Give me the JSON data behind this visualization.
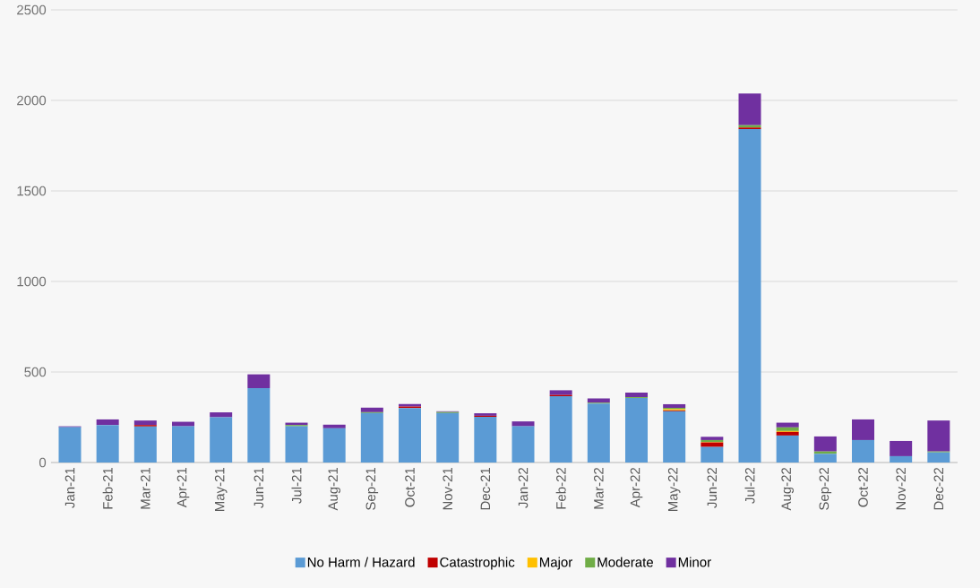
{
  "chart_data": {
    "type": "bar",
    "stacked": true,
    "grid": "y",
    "legend": "bottom",
    "categories": [
      "Jan-21",
      "Feb-21",
      "Mar-21",
      "Apr-21",
      "May-21",
      "Jun-21",
      "Jul-21",
      "Aug-21",
      "Sep-21",
      "Oct-21",
      "Nov-21",
      "Dec-21",
      "Jan-22",
      "Feb-22",
      "Mar-22",
      "Apr-22",
      "May-22",
      "Jun-22",
      "Jul-22",
      "Aug-22",
      "Sep-22",
      "Oct-22",
      "Nov-22",
      "Dec-22"
    ],
    "ylim": [
      0,
      2500
    ],
    "yticks": [
      0,
      500,
      1000,
      1500,
      2000,
      2500
    ],
    "series": [
      {
        "name": "No Harm / Hazard",
        "color": "#5b9bd5",
        "values": [
          195,
          207,
          199,
          200,
          250,
          411,
          200,
          189,
          273,
          301,
          273,
          252,
          200,
          366,
          325,
          356,
          283,
          86,
          1841,
          149,
          48,
          124,
          35,
          56
        ]
      },
      {
        "name": "Catastrophic",
        "color": "#c00000",
        "values": [
          0,
          0,
          8,
          0,
          0,
          0,
          0,
          0,
          0,
          8,
          0,
          6,
          0,
          7,
          0,
          0,
          5,
          25,
          9,
          20,
          0,
          0,
          0,
          0
        ]
      },
      {
        "name": "Major",
        "color": "#ffc000",
        "values": [
          0,
          0,
          0,
          0,
          0,
          0,
          0,
          0,
          0,
          0,
          0,
          0,
          0,
          0,
          0,
          0,
          7,
          3,
          0,
          5,
          0,
          0,
          0,
          0
        ]
      },
      {
        "name": "Moderate",
        "color": "#70ad47",
        "values": [
          0,
          0,
          0,
          0,
          0,
          0,
          7,
          0,
          5,
          0,
          6,
          0,
          0,
          0,
          5,
          5,
          7,
          10,
          13,
          20,
          13,
          0,
          0,
          5
        ]
      },
      {
        "name": "Minor",
        "color": "#7030a0",
        "values": [
          5,
          31,
          25,
          25,
          27,
          76,
          13,
          20,
          25,
          14,
          4,
          14,
          27,
          26,
          24,
          25,
          20,
          18,
          175,
          26,
          83,
          114,
          84,
          171
        ]
      }
    ]
  }
}
